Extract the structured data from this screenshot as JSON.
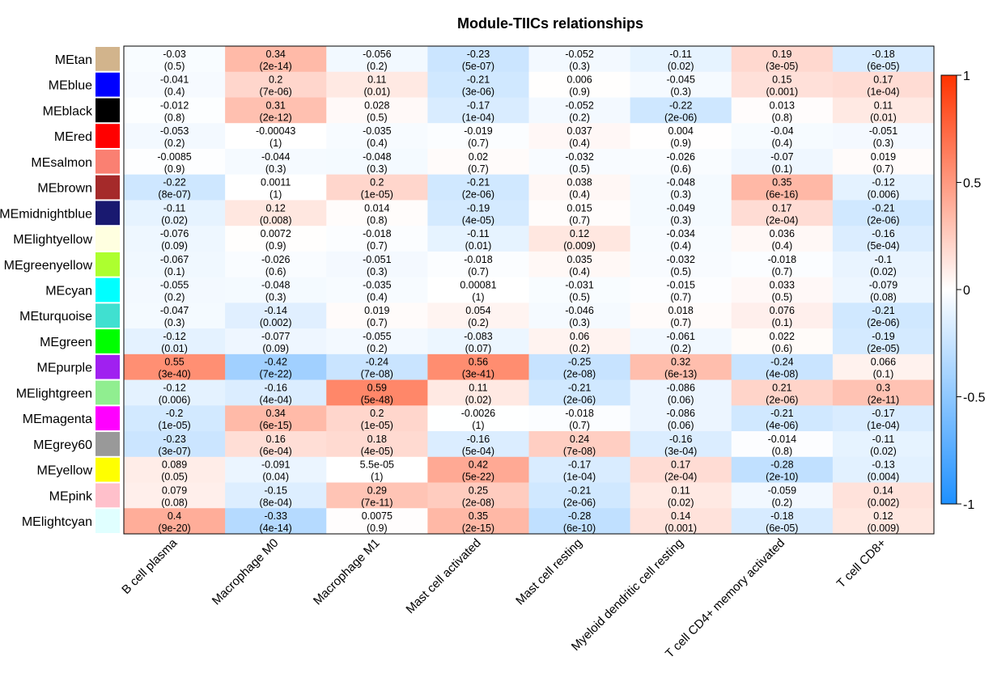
{
  "chart_data": {
    "type": "heatmap",
    "title": "Module-TIICs relationships",
    "rows": [
      "MEtan",
      "MEblue",
      "MEblack",
      "MEred",
      "MEsalmon",
      "MEbrown",
      "MEmidnightblue",
      "MElightyellow",
      "MEgreenyellow",
      "MEcyan",
      "MEturquoise",
      "MEgreen",
      "MEpurple",
      "MElightgreen",
      "MEmagenta",
      "MEgrey60",
      "MEyellow",
      "MEpink",
      "MElightcyan"
    ],
    "row_colors": [
      "#D2B48C",
      "#0000FF",
      "#000000",
      "#FF0000",
      "#FA8072",
      "#A52A2A",
      "#191970",
      "#FFFFE0",
      "#ADFF2F",
      "#00FFFF",
      "#40E0D0",
      "#00FF00",
      "#A020F0",
      "#90EE90",
      "#FF00FF",
      "#999999",
      "#FFFF00",
      "#FFC0CB",
      "#E0FFFF"
    ],
    "columns": [
      "B cell plasma",
      "Macrophage M0",
      "Macrophage M1",
      "Mast cell activated",
      "Mast cell resting",
      "Myeloid dendritic cell resting",
      "T cell CD4+ memory activated",
      "T cell CD8+"
    ],
    "values": [
      [
        -0.03,
        0.34,
        -0.056,
        -0.23,
        -0.052,
        -0.11,
        0.19,
        -0.18
      ],
      [
        -0.041,
        0.2,
        0.11,
        -0.21,
        0.006,
        -0.045,
        0.15,
        0.17
      ],
      [
        -0.012,
        0.31,
        0.028,
        -0.17,
        -0.052,
        -0.22,
        0.013,
        0.11
      ],
      [
        -0.053,
        -0.00043,
        -0.035,
        -0.019,
        0.037,
        0.004,
        -0.04,
        -0.051
      ],
      [
        -0.0085,
        -0.044,
        -0.048,
        0.02,
        -0.032,
        -0.026,
        -0.07,
        0.019
      ],
      [
        -0.22,
        0.0011,
        0.2,
        -0.21,
        0.038,
        -0.048,
        0.35,
        -0.12
      ],
      [
        -0.11,
        0.12,
        0.014,
        -0.19,
        0.015,
        -0.049,
        0.17,
        -0.21
      ],
      [
        -0.076,
        0.0072,
        -0.018,
        -0.11,
        0.12,
        -0.034,
        0.036,
        -0.16
      ],
      [
        -0.067,
        -0.026,
        -0.051,
        -0.018,
        0.035,
        -0.032,
        -0.018,
        -0.1
      ],
      [
        -0.055,
        -0.048,
        -0.035,
        0.00081,
        -0.031,
        -0.015,
        0.033,
        -0.079
      ],
      [
        -0.047,
        -0.14,
        0.019,
        0.054,
        -0.046,
        0.018,
        0.076,
        -0.21
      ],
      [
        -0.12,
        -0.077,
        -0.055,
        -0.083,
        0.06,
        -0.061,
        0.022,
        -0.19
      ],
      [
        0.55,
        -0.42,
        -0.24,
        0.56,
        -0.25,
        0.32,
        -0.24,
        0.066
      ],
      [
        -0.12,
        -0.16,
        0.59,
        0.11,
        -0.21,
        -0.086,
        0.21,
        0.3
      ],
      [
        -0.2,
        0.34,
        0.2,
        -0.0026,
        -0.018,
        -0.086,
        -0.21,
        -0.17
      ],
      [
        -0.23,
        0.16,
        0.18,
        -0.16,
        0.24,
        -0.16,
        -0.014,
        -0.11
      ],
      [
        0.089,
        -0.091,
        5.5e-05,
        0.42,
        -0.17,
        0.17,
        -0.28,
        -0.13
      ],
      [
        0.079,
        -0.15,
        0.29,
        0.25,
        -0.21,
        0.11,
        -0.059,
        0.14
      ],
      [
        0.4,
        -0.33,
        0.0075,
        0.35,
        -0.28,
        0.14,
        -0.18,
        0.12
      ]
    ],
    "value_labels": [
      [
        "-0.03",
        "0.34",
        "-0.056",
        "-0.23",
        "-0.052",
        "-0.11",
        "0.19",
        "-0.18"
      ],
      [
        "-0.041",
        "0.2",
        "0.11",
        "-0.21",
        "0.006",
        "-0.045",
        "0.15",
        "0.17"
      ],
      [
        "-0.012",
        "0.31",
        "0.028",
        "-0.17",
        "-0.052",
        "-0.22",
        "0.013",
        "0.11"
      ],
      [
        "-0.053",
        "-0.00043",
        "-0.035",
        "-0.019",
        "0.037",
        "0.004",
        "-0.04",
        "-0.051"
      ],
      [
        "-0.0085",
        "-0.044",
        "-0.048",
        "0.02",
        "-0.032",
        "-0.026",
        "-0.07",
        "0.019"
      ],
      [
        "-0.22",
        "0.0011",
        "0.2",
        "-0.21",
        "0.038",
        "-0.048",
        "0.35",
        "-0.12"
      ],
      [
        "-0.11",
        "0.12",
        "0.014",
        "-0.19",
        "0.015",
        "-0.049",
        "0.17",
        "-0.21"
      ],
      [
        "-0.076",
        "0.0072",
        "-0.018",
        "-0.11",
        "0.12",
        "-0.034",
        "0.036",
        "-0.16"
      ],
      [
        "-0.067",
        "-0.026",
        "-0.051",
        "-0.018",
        "0.035",
        "-0.032",
        "-0.018",
        "-0.1"
      ],
      [
        "-0.055",
        "-0.048",
        "-0.035",
        "0.00081",
        "-0.031",
        "-0.015",
        "0.033",
        "-0.079"
      ],
      [
        "-0.047",
        "-0.14",
        "0.019",
        "0.054",
        "-0.046",
        "0.018",
        "0.076",
        "-0.21"
      ],
      [
        "-0.12",
        "-0.077",
        "-0.055",
        "-0.083",
        "0.06",
        "-0.061",
        "0.022",
        "-0.19"
      ],
      [
        "0.55",
        "-0.42",
        "-0.24",
        "0.56",
        "-0.25",
        "0.32",
        "-0.24",
        "0.066"
      ],
      [
        "-0.12",
        "-0.16",
        "0.59",
        "0.11",
        "-0.21",
        "-0.086",
        "0.21",
        "0.3"
      ],
      [
        "-0.2",
        "0.34",
        "0.2",
        "-0.0026",
        "-0.018",
        "-0.086",
        "-0.21",
        "-0.17"
      ],
      [
        "-0.23",
        "0.16",
        "0.18",
        "-0.16",
        "0.24",
        "-0.16",
        "-0.014",
        "-0.11"
      ],
      [
        "0.089",
        "-0.091",
        "5.5e-05",
        "0.42",
        "-0.17",
        "0.17",
        "-0.28",
        "-0.13"
      ],
      [
        "0.079",
        "-0.15",
        "0.29",
        "0.25",
        "-0.21",
        "0.11",
        "-0.059",
        "0.14"
      ],
      [
        "0.4",
        "-0.33",
        "0.0075",
        "0.35",
        "-0.28",
        "0.14",
        "-0.18",
        "0.12"
      ]
    ],
    "pvalues": [
      [
        "(0.5)",
        "(2e-14)",
        "(0.2)",
        "(5e-07)",
        "(0.3)",
        "(0.02)",
        "(3e-05)",
        "(6e-05)"
      ],
      [
        "(0.4)",
        "(7e-06)",
        "(0.01)",
        "(3e-06)",
        "(0.9)",
        "(0.3)",
        "(0.001)",
        "(1e-04)"
      ],
      [
        "(0.8)",
        "(2e-12)",
        "(0.5)",
        "(1e-04)",
        "(0.2)",
        "(2e-06)",
        "(0.8)",
        "(0.01)"
      ],
      [
        "(0.2)",
        "(1)",
        "(0.4)",
        "(0.7)",
        "(0.4)",
        "(0.9)",
        "(0.4)",
        "(0.3)"
      ],
      [
        "(0.9)",
        "(0.3)",
        "(0.3)",
        "(0.7)",
        "(0.5)",
        "(0.6)",
        "(0.1)",
        "(0.7)"
      ],
      [
        "(8e-07)",
        "(1)",
        "(1e-05)",
        "(2e-06)",
        "(0.4)",
        "(0.3)",
        "(6e-16)",
        "(0.006)"
      ],
      [
        "(0.02)",
        "(0.008)",
        "(0.8)",
        "(4e-05)",
        "(0.7)",
        "(0.3)",
        "(2e-04)",
        "(2e-06)"
      ],
      [
        "(0.09)",
        "(0.9)",
        "(0.7)",
        "(0.01)",
        "(0.009)",
        "(0.4)",
        "(0.4)",
        "(5e-04)"
      ],
      [
        "(0.1)",
        "(0.6)",
        "(0.3)",
        "(0.7)",
        "(0.4)",
        "(0.5)",
        "(0.7)",
        "(0.02)"
      ],
      [
        "(0.2)",
        "(0.3)",
        "(0.4)",
        "(1)",
        "(0.5)",
        "(0.7)",
        "(0.5)",
        "(0.08)"
      ],
      [
        "(0.3)",
        "(0.002)",
        "(0.7)",
        "(0.2)",
        "(0.3)",
        "(0.7)",
        "(0.1)",
        "(2e-06)"
      ],
      [
        "(0.01)",
        "(0.09)",
        "(0.2)",
        "(0.07)",
        "(0.2)",
        "(0.2)",
        "(0.6)",
        "(2e-05)"
      ],
      [
        "(3e-40)",
        "(7e-22)",
        "(7e-08)",
        "(3e-41)",
        "(2e-08)",
        "(6e-13)",
        "(4e-08)",
        "(0.1)"
      ],
      [
        "(0.006)",
        "(4e-04)",
        "(5e-48)",
        "(0.02)",
        "(2e-06)",
        "(0.06)",
        "(2e-06)",
        "(2e-11)"
      ],
      [
        "(1e-05)",
        "(6e-15)",
        "(1e-05)",
        "(1)",
        "(0.7)",
        "(0.06)",
        "(4e-06)",
        "(1e-04)"
      ],
      [
        "(3e-07)",
        "(6e-04)",
        "(4e-05)",
        "(5e-04)",
        "(7e-08)",
        "(3e-04)",
        "(0.8)",
        "(0.02)"
      ],
      [
        "(0.05)",
        "(0.04)",
        "(1)",
        "(5e-22)",
        "(1e-04)",
        "(2e-04)",
        "(2e-10)",
        "(0.004)"
      ],
      [
        "(0.08)",
        "(8e-04)",
        "(7e-11)",
        "(2e-08)",
        "(2e-06)",
        "(0.02)",
        "(0.2)",
        "(0.002)"
      ],
      [
        "(9e-20)",
        "(4e-14)",
        "(0.9)",
        "(2e-15)",
        "(6e-10)",
        "(0.001)",
        "(6e-05)",
        "(0.009)"
      ]
    ],
    "colorbar": {
      "range": [
        -1,
        1
      ],
      "ticks": [
        1,
        0.5,
        0,
        -0.5,
        -1
      ],
      "tick_labels": [
        "1",
        "0.5",
        "0",
        "-0.5",
        "-1"
      ],
      "low_color": "#1E90FF",
      "mid_color": "#FFFFFF",
      "high_color": "#FF3300"
    },
    "legend": "right"
  }
}
